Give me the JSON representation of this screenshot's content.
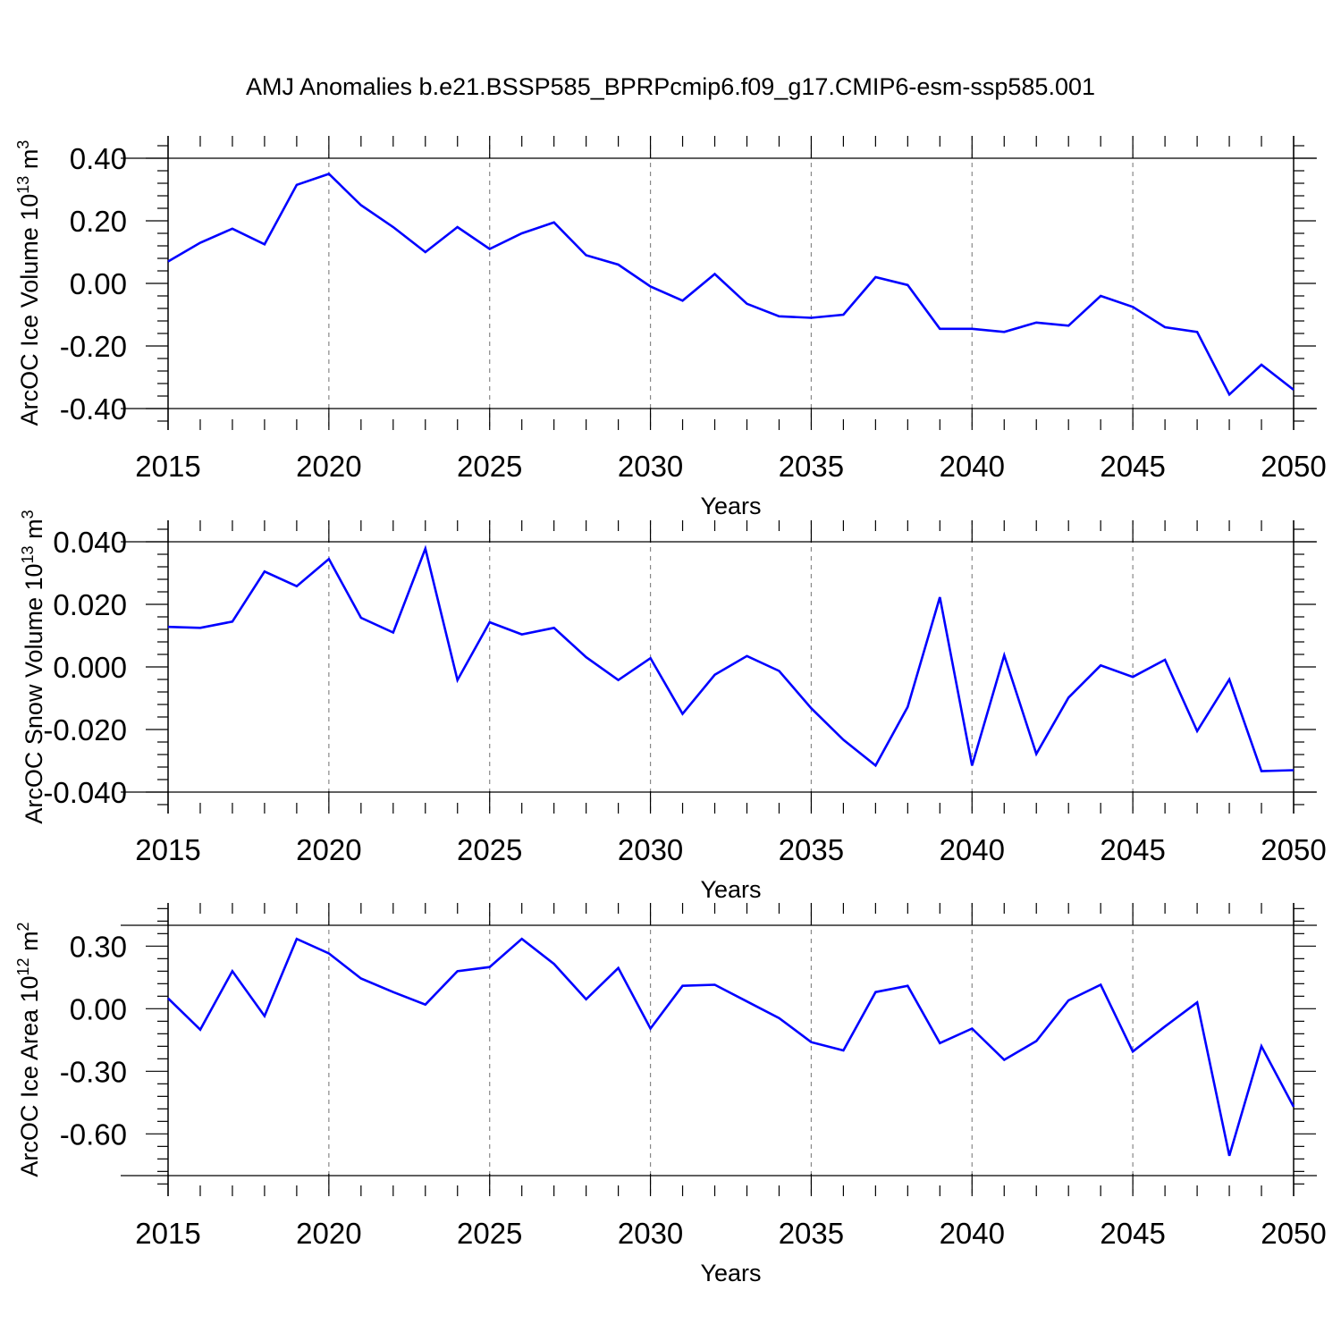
{
  "title": "AMJ Anomalies b.e21.BSSP585_BPRPcmip6.f09_g17.CMIP6-esm-ssp585.001",
  "chart_data": [
    {
      "type": "line",
      "ylabel": "ArcOC Ice Volume 10",
      "ylabel_exp": "13",
      "ylabel_unit": " m",
      "ylabel_unit_exp": "3",
      "xlabel": "Years",
      "xlim": [
        2015,
        2050
      ],
      "ylim": [
        -0.4,
        0.4
      ],
      "yticks": [
        -0.4,
        -0.2,
        0.0,
        0.2,
        0.4
      ],
      "ytick_labels": [
        "-0.40",
        "-0.20",
        "0.00",
        "0.20",
        "0.40"
      ],
      "xticks": [
        2015,
        2020,
        2025,
        2030,
        2035,
        2040,
        2045,
        2050
      ],
      "xtick_labels": [
        "2015",
        "2020",
        "2025",
        "2030",
        "2035",
        "2040",
        "2045",
        "2050"
      ],
      "color": "#0000ff",
      "x": [
        2015,
        2016,
        2017,
        2018,
        2019,
        2020,
        2021,
        2022,
        2023,
        2024,
        2025,
        2026,
        2027,
        2028,
        2029,
        2030,
        2031,
        2032,
        2033,
        2034,
        2035,
        2036,
        2037,
        2038,
        2039,
        2040,
        2041,
        2042,
        2043,
        2044,
        2045,
        2046,
        2047,
        2048,
        2049,
        2050
      ],
      "values": [
        0.07,
        0.13,
        0.175,
        0.125,
        0.315,
        0.35,
        0.25,
        0.18,
        0.1,
        0.18,
        0.11,
        0.16,
        0.195,
        0.09,
        0.06,
        -0.01,
        -0.055,
        0.03,
        -0.065,
        -0.105,
        -0.11,
        -0.1,
        0.02,
        -0.005,
        -0.145,
        -0.145,
        -0.155,
        -0.125,
        -0.135,
        -0.04,
        -0.075,
        -0.14,
        -0.155,
        -0.355,
        -0.26,
        -0.34
      ]
    },
    {
      "type": "line",
      "ylabel": "ArcOC Snow Volume 10",
      "ylabel_exp": "13",
      "ylabel_unit": " m",
      "ylabel_unit_exp": "3",
      "xlabel": "Years",
      "xlim": [
        2015,
        2050
      ],
      "ylim": [
        -0.04,
        0.04
      ],
      "yticks": [
        -0.04,
        -0.02,
        0.0,
        0.02,
        0.04
      ],
      "ytick_labels": [
        "-0.040",
        "-0.020",
        "0.000",
        "0.020",
        "0.040"
      ],
      "xticks": [
        2015,
        2020,
        2025,
        2030,
        2035,
        2040,
        2045,
        2050
      ],
      "xtick_labels": [
        "2015",
        "2020",
        "2025",
        "2030",
        "2035",
        "2040",
        "2045",
        "2050"
      ],
      "color": "#0000ff",
      "x": [
        2015,
        2016,
        2017,
        2018,
        2019,
        2020,
        2021,
        2022,
        2023,
        2024,
        2025,
        2026,
        2027,
        2028,
        2029,
        2030,
        2031,
        2032,
        2033,
        2034,
        2035,
        2036,
        2037,
        2038,
        2039,
        2040,
        2041,
        2042,
        2043,
        2044,
        2045,
        2046,
        2047,
        2048,
        2049,
        2050
      ],
      "values": [
        0.0128,
        0.0125,
        0.0145,
        0.0305,
        0.0258,
        0.0345,
        0.0157,
        0.011,
        0.0378,
        -0.0042,
        0.0143,
        0.0104,
        0.0125,
        0.0031,
        -0.0042,
        0.0028,
        -0.015,
        -0.0025,
        0.0035,
        -0.0013,
        -0.0132,
        -0.0233,
        -0.0315,
        -0.0128,
        0.0223,
        -0.0315,
        0.0037,
        -0.0278,
        -0.0098,
        0.0005,
        -0.0032,
        0.0023,
        -0.0205,
        -0.004,
        -0.0333,
        -0.033
      ]
    },
    {
      "type": "line",
      "ylabel": "ArcOC Ice Area 10",
      "ylabel_exp": "12",
      "ylabel_unit": " m",
      "ylabel_unit_exp": "2",
      "xlabel": "Years",
      "xlim": [
        2015,
        2050
      ],
      "ylim": [
        -0.8,
        0.4
      ],
      "yticks": [
        -0.6,
        -0.3,
        0.0,
        0.3
      ],
      "ytick_labels": [
        "-0.60",
        "-0.30",
        "0.00",
        "0.30"
      ],
      "xticks": [
        2015,
        2020,
        2025,
        2030,
        2035,
        2040,
        2045,
        2050
      ],
      "xtick_labels": [
        "2015",
        "2020",
        "2025",
        "2030",
        "2035",
        "2040",
        "2045",
        "2050"
      ],
      "color": "#0000ff",
      "x": [
        2015,
        2016,
        2017,
        2018,
        2019,
        2020,
        2021,
        2022,
        2023,
        2024,
        2025,
        2026,
        2027,
        2028,
        2029,
        2030,
        2031,
        2032,
        2033,
        2034,
        2035,
        2036,
        2037,
        2038,
        2039,
        2040,
        2041,
        2042,
        2043,
        2044,
        2045,
        2046,
        2047,
        2048,
        2049,
        2050
      ],
      "values": [
        0.05,
        -0.1,
        0.18,
        -0.035,
        0.335,
        0.265,
        0.145,
        0.08,
        0.02,
        0.18,
        0.2,
        0.335,
        0.215,
        0.045,
        0.195,
        -0.095,
        0.11,
        0.115,
        0.035,
        -0.045,
        -0.16,
        -0.2,
        0.08,
        0.11,
        -0.165,
        -0.095,
        -0.245,
        -0.155,
        0.04,
        0.115,
        -0.205,
        -0.085,
        0.03,
        -0.705,
        -0.18,
        -0.47
      ]
    }
  ]
}
